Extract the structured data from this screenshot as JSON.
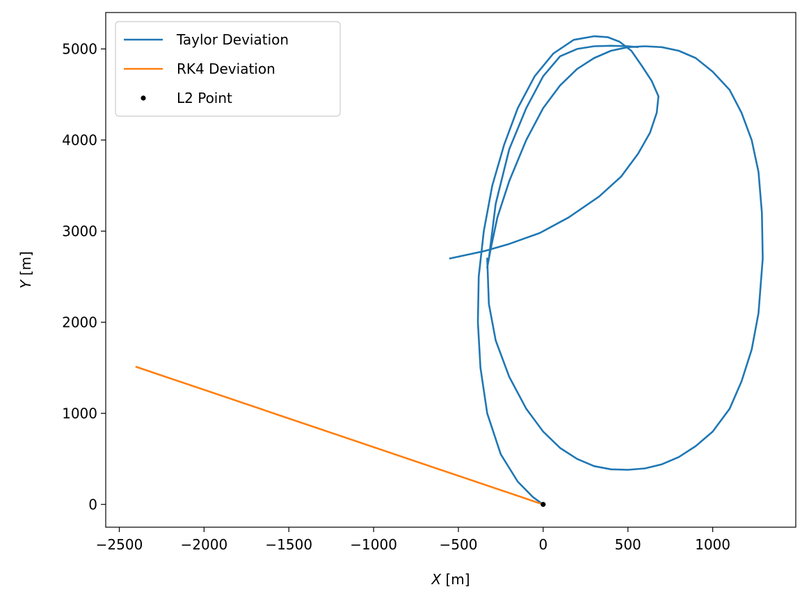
{
  "chart_data": {
    "type": "line",
    "xlabel_var": "X",
    "xlabel_unit": " [m]",
    "ylabel_var": "Y",
    "ylabel_unit": " [m]",
    "xlim": [
      -2580,
      1490
    ],
    "ylim": [
      -250,
      5400
    ],
    "x_ticks": [
      -2500,
      -2000,
      -1500,
      -1000,
      -500,
      0,
      500,
      1000
    ],
    "x_tick_labels": [
      "−2500",
      "−2000",
      "−1500",
      "−1000",
      "−500",
      "0",
      "500",
      "1000"
    ],
    "y_ticks": [
      0,
      1000,
      2000,
      3000,
      4000,
      5000
    ],
    "y_tick_labels": [
      "0",
      "1000",
      "2000",
      "3000",
      "4000",
      "5000"
    ],
    "grid": false,
    "legend_position": "top-left",
    "series": [
      {
        "name": "Taylor Deviation",
        "color": "#1f77b4",
        "style": "line",
        "x": [
          0,
          -60,
          -150,
          -250,
          -330,
          -370,
          -385,
          -380,
          -350,
          -300,
          -230,
          -150,
          -50,
          60,
          180,
          300,
          380,
          450,
          520,
          580,
          640,
          680,
          670,
          630,
          560,
          460,
          330,
          150,
          -20,
          -200,
          -350,
          -450,
          -550
        ],
        "y": [
          0,
          80,
          250,
          550,
          1000,
          1500,
          2000,
          2500,
          3000,
          3500,
          3950,
          4350,
          4700,
          4950,
          5100,
          5140,
          5130,
          5080,
          4980,
          4820,
          4650,
          4480,
          4300,
          4080,
          3850,
          3600,
          3380,
          3150,
          2980,
          2860,
          2780,
          2740,
          2700
        ]
      },
      {
        "name": "Taylor Deviation",
        "color": "#1f77b4",
        "style": "line",
        "x": [
          -330,
          -320,
          -280,
          -200,
          -100,
          0,
          100,
          200,
          300,
          400,
          500,
          600,
          700,
          800,
          900,
          1000,
          1100,
          1170,
          1230,
          1270,
          1295,
          1290,
          1270,
          1230,
          1170,
          1100,
          1000,
          900,
          800,
          700,
          600,
          500,
          400,
          300,
          200,
          100,
          0,
          -100,
          -200,
          -270,
          -310,
          -330,
          -320,
          -280,
          -200,
          -100,
          0,
          100,
          200,
          300,
          400,
          500,
          560
        ],
        "y": [
          2700,
          2200,
          1800,
          1400,
          1050,
          800,
          620,
          500,
          420,
          385,
          380,
          395,
          440,
          520,
          640,
          800,
          1050,
          1350,
          1700,
          2100,
          2700,
          3200,
          3650,
          4000,
          4300,
          4550,
          4750,
          4900,
          4980,
          5020,
          5030,
          5020,
          4980,
          4900,
          4780,
          4600,
          4350,
          4000,
          3550,
          3150,
          2800,
          2600,
          2700,
          3300,
          3900,
          4350,
          4700,
          4920,
          5000,
          5030,
          5035,
          5030,
          5020
        ]
      },
      {
        "name": "RK4 Deviation",
        "color": "#ff7f0e",
        "style": "line",
        "x": [
          -2400,
          0
        ],
        "y": [
          1510,
          0
        ]
      },
      {
        "name": "L2 Point",
        "color": "#000000",
        "style": "marker",
        "x": [
          0
        ],
        "y": [
          0
        ]
      }
    ],
    "legend": [
      {
        "name": "Taylor Deviation",
        "color": "#1f77b4",
        "style": "line"
      },
      {
        "name": "RK4 Deviation",
        "color": "#ff7f0e",
        "style": "line"
      },
      {
        "name": "L2 Point",
        "color": "#000000",
        "style": "marker"
      }
    ]
  }
}
